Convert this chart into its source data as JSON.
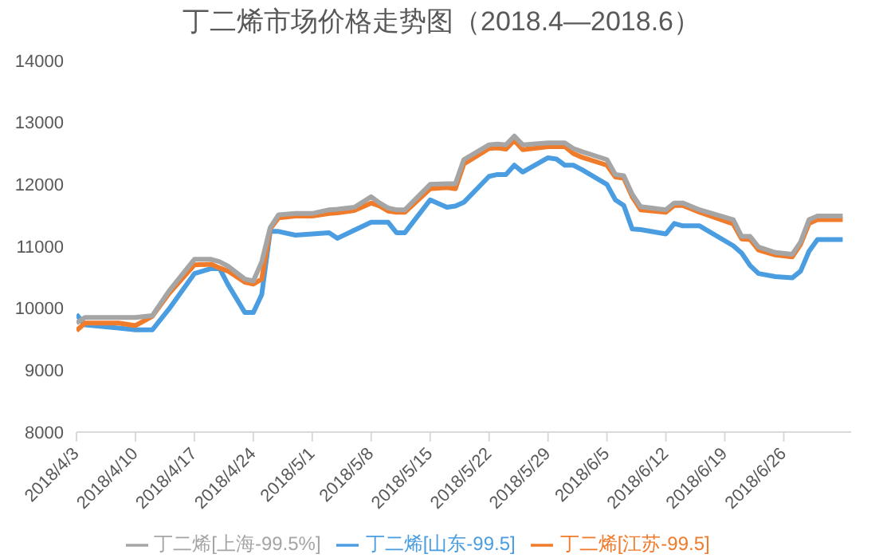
{
  "chart_data": {
    "type": "line",
    "title": "丁二烯市场价格走势图（2018.4—2018.6）",
    "x": [
      "2018-04-03",
      "2018-04-04",
      "2018-04-08",
      "2018-04-10",
      "2018-04-12",
      "2018-04-14",
      "2018-04-17",
      "2018-04-19",
      "2018-04-20",
      "2018-04-21",
      "2018-04-23",
      "2018-04-24",
      "2018-04-25",
      "2018-04-26",
      "2018-04-27",
      "2018-04-29",
      "2018-05-01",
      "2018-05-03",
      "2018-05-04",
      "2018-05-06",
      "2018-05-08",
      "2018-05-09",
      "2018-05-10",
      "2018-05-11",
      "2018-05-12",
      "2018-05-15",
      "2018-05-17",
      "2018-05-18",
      "2018-05-19",
      "2018-05-22",
      "2018-05-23",
      "2018-05-24",
      "2018-05-25",
      "2018-05-26",
      "2018-05-29",
      "2018-05-30",
      "2018-05-31",
      "2018-06-01",
      "2018-06-02",
      "2018-06-05",
      "2018-06-06",
      "2018-06-07",
      "2018-06-08",
      "2018-06-09",
      "2018-06-12",
      "2018-06-13",
      "2018-06-14",
      "2018-06-16",
      "2018-06-20",
      "2018-06-21",
      "2018-06-22",
      "2018-06-23",
      "2018-06-25",
      "2018-06-27",
      "2018-06-28",
      "2018-06-29",
      "2018-06-30",
      "2018-07-03"
    ],
    "series": [
      {
        "name": "丁二烯[山东-99.5]",
        "color": "#4a9de0",
        "values": [
          9900,
          9730,
          9680,
          9650,
          9650,
          9990,
          10560,
          10640,
          10640,
          10380,
          9930,
          9930,
          10220,
          11240,
          11240,
          11180,
          11200,
          11220,
          11130,
          11260,
          11390,
          11390,
          11390,
          11220,
          11220,
          11750,
          11630,
          11650,
          11710,
          12130,
          12160,
          12160,
          12310,
          12200,
          12430,
          12410,
          12310,
          12310,
          12240,
          12000,
          11750,
          11660,
          11280,
          11270,
          11200,
          11370,
          11330,
          11330,
          11010,
          10890,
          10690,
          10560,
          10510,
          10490,
          10600,
          10920,
          11110,
          11110
        ]
      },
      {
        "name": "丁二烯[江苏-99.5]",
        "color": "#f07b2a",
        "values": [
          9640,
          9760,
          9760,
          9720,
          9870,
          10240,
          10700,
          10710,
          10650,
          10600,
          10420,
          10390,
          10470,
          11280,
          11460,
          11490,
          11490,
          11530,
          11540,
          11580,
          11700,
          11650,
          11570,
          11550,
          11550,
          11930,
          11950,
          11930,
          12330,
          12580,
          12590,
          12570,
          12710,
          12560,
          12610,
          12610,
          12610,
          12500,
          12440,
          12310,
          12120,
          12100,
          11800,
          11590,
          11550,
          11660,
          11660,
          11550,
          11360,
          11120,
          11110,
          10940,
          10860,
          10830,
          11030,
          11370,
          11430,
          11430
        ]
      },
      {
        "name": "丁二烯[上海-99.5%]",
        "color": "#a5a5a5",
        "values": [
          9760,
          9850,
          9850,
          9850,
          9880,
          10280,
          10790,
          10790,
          10750,
          10680,
          10470,
          10440,
          10750,
          11300,
          11510,
          11530,
          11530,
          11590,
          11600,
          11630,
          11800,
          11700,
          11620,
          11590,
          11590,
          12000,
          12010,
          12010,
          12400,
          12640,
          12650,
          12640,
          12780,
          12640,
          12670,
          12670,
          12670,
          12580,
          12530,
          12400,
          12160,
          12140,
          11840,
          11640,
          11590,
          11700,
          11700,
          11590,
          11430,
          11160,
          11160,
          10990,
          10900,
          10870,
          11070,
          11430,
          11490,
          11490
        ]
      }
    ],
    "xlim": [
      "2018-04-03",
      "2018-07-04"
    ],
    "xticks": [
      {
        "value": "2018-04-03",
        "label": "2018/4/3"
      },
      {
        "value": "2018-04-10",
        "label": "2018/4/10"
      },
      {
        "value": "2018-04-17",
        "label": "2018/4/17"
      },
      {
        "value": "2018-04-24",
        "label": "2018/4/24"
      },
      {
        "value": "2018-05-01",
        "label": "2018/5/1"
      },
      {
        "value": "2018-05-08",
        "label": "2018/5/8"
      },
      {
        "value": "2018-05-15",
        "label": "2018/5/15"
      },
      {
        "value": "2018-05-22",
        "label": "2018/5/22"
      },
      {
        "value": "2018-05-29",
        "label": "2018/5/29"
      },
      {
        "value": "2018-06-05",
        "label": "2018/6/5"
      },
      {
        "value": "2018-06-12",
        "label": "2018/6/12"
      },
      {
        "value": "2018-06-19",
        "label": "2018/6/19"
      },
      {
        "value": "2018-06-26",
        "label": "2018/6/26"
      }
    ],
    "ylim": [
      8000,
      14000
    ],
    "yticks": [
      8000,
      9000,
      10000,
      11000,
      12000,
      13000,
      14000
    ],
    "legend": "bottom",
    "marker": "none",
    "line_style": "solid"
  }
}
